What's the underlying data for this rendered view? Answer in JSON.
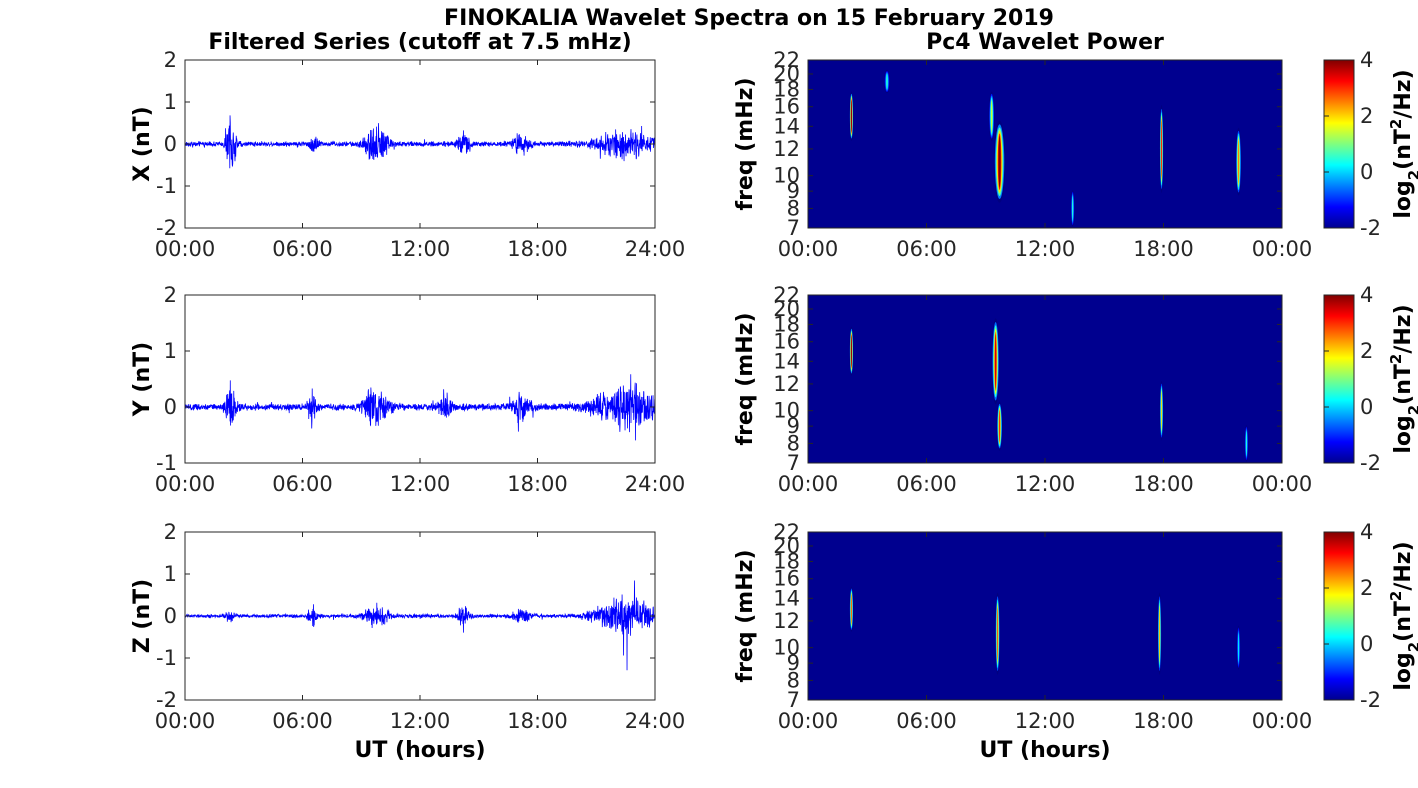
{
  "figure": {
    "title": "FINOKALIA Wavelet Spectra on 15 February 2019",
    "left_title": "Filtered Series (cutoff at 7.5 mHz)",
    "right_title": "Pc4 Wavelet Power",
    "x_label": "UT (hours)"
  },
  "colors": {
    "trace": "#0000ff",
    "axis": "#262626"
  },
  "chart_data": [
    {
      "type": "line",
      "component": "X",
      "ylabel": "X (nT)",
      "ylim": [
        -2,
        2
      ],
      "yticks": [
        "-2",
        "-1",
        "0",
        "1",
        "2"
      ],
      "xticks": [
        "00:00",
        "06:00",
        "12:00",
        "18:00",
        "24:00"
      ],
      "xlim": [
        0,
        24
      ],
      "xlabel": "",
      "noise": 0.07,
      "events": [
        [
          2.35,
          0.75,
          0.25
        ],
        [
          6.6,
          0.3,
          0.2
        ],
        [
          9.8,
          0.55,
          0.6
        ],
        [
          14.2,
          0.3,
          0.3
        ],
        [
          17.2,
          0.3,
          0.4
        ],
        [
          22.5,
          0.35,
          1.5
        ]
      ]
    },
    {
      "type": "line",
      "component": "Y",
      "ylabel": "Y (nT)",
      "ylim": [
        -1,
        2
      ],
      "yticks": [
        "-1",
        "0",
        "1",
        "2"
      ],
      "xticks": [
        "00:00",
        "06:00",
        "12:00",
        "18:00",
        "24:00"
      ],
      "xlim": [
        0,
        24
      ],
      "xlabel": "",
      "noise": 0.07,
      "events": [
        [
          2.35,
          0.5,
          0.25
        ],
        [
          6.5,
          0.35,
          0.2
        ],
        [
          9.8,
          0.4,
          0.6
        ],
        [
          13.3,
          0.3,
          0.3
        ],
        [
          17.2,
          0.3,
          0.4
        ],
        [
          22.5,
          0.45,
          1.5
        ]
      ]
    },
    {
      "type": "line",
      "component": "Z",
      "ylabel": "Z (nT)",
      "ylim": [
        -2,
        2
      ],
      "yticks": [
        "-2",
        "-1",
        "0",
        "1",
        "2"
      ],
      "xticks": [
        "00:00",
        "06:00",
        "12:00",
        "18:00",
        "24:00"
      ],
      "xlim": [
        0,
        24
      ],
      "xlabel": "UT (hours)",
      "noise": 0.05,
      "events": [
        [
          2.3,
          0.15,
          0.2
        ],
        [
          6.5,
          0.3,
          0.2
        ],
        [
          9.8,
          0.3,
          0.6
        ],
        [
          14.2,
          0.25,
          0.3
        ],
        [
          17.2,
          0.2,
          0.4
        ],
        [
          22.5,
          0.5,
          1.5
        ]
      ]
    },
    {
      "type": "heatmap",
      "component": "X",
      "ylabel": "freq (mHz)",
      "yticks": [
        "7",
        "8",
        "9",
        "10",
        "12",
        "14",
        "16",
        "18",
        "20",
        "22"
      ],
      "ylim": [
        7,
        22
      ],
      "xticks": [
        "00:00",
        "06:00",
        "12:00",
        "18:00",
        "00:00"
      ],
      "xlim": [
        0,
        24
      ],
      "xlabel": "",
      "colorbar": {
        "label": "log2(nT2/Hz)",
        "range": [
          -2,
          4
        ],
        "ticks": [
          "-2",
          "0",
          "2",
          "4"
        ]
      },
      "blobs": [
        [
          2.2,
          15,
          0.1,
          5,
          6.2
        ],
        [
          4.0,
          19,
          0.15,
          3,
          2.5
        ],
        [
          9.7,
          11,
          0.3,
          6,
          6.0
        ],
        [
          9.3,
          15,
          0.15,
          5,
          3.5
        ],
        [
          13.4,
          8,
          0.1,
          2,
          2.5
        ],
        [
          17.9,
          12,
          0.1,
          7,
          5.2
        ],
        [
          21.8,
          11,
          0.15,
          5,
          4.5
        ]
      ]
    },
    {
      "type": "heatmap",
      "component": "Y",
      "ylabel": "freq (mHz)",
      "yticks": [
        "7",
        "8",
        "9",
        "10",
        "12",
        "14",
        "16",
        "18",
        "20",
        "22"
      ],
      "ylim": [
        7,
        22
      ],
      "xticks": [
        "00:00",
        "06:00",
        "12:00",
        "18:00",
        "00:00"
      ],
      "xlim": [
        0,
        24
      ],
      "xlabel": "",
      "colorbar": {
        "label": "log2(nT2/Hz)",
        "range": [
          -2,
          4
        ],
        "ticks": [
          "-2",
          "0",
          "2",
          "4"
        ]
      },
      "blobs": [
        [
          2.2,
          15,
          0.1,
          5,
          6.0
        ],
        [
          9.5,
          14,
          0.2,
          8,
          5.5
        ],
        [
          9.7,
          9,
          0.15,
          3,
          5.0
        ],
        [
          17.9,
          10,
          0.1,
          4,
          4.0
        ],
        [
          22.2,
          8,
          0.1,
          2,
          2.5
        ]
      ]
    },
    {
      "type": "heatmap",
      "component": "Z",
      "ylabel": "freq (mHz)",
      "yticks": [
        "7",
        "8",
        "9",
        "10",
        "12",
        "14",
        "16",
        "18",
        "20",
        "22"
      ],
      "ylim": [
        7,
        22
      ],
      "xticks": [
        "00:00",
        "06:00",
        "12:00",
        "18:00",
        "00:00"
      ],
      "xlim": [
        0,
        24
      ],
      "xlabel": "UT (hours)",
      "colorbar": {
        "label": "log2(nT2/Hz)",
        "range": [
          -2,
          4
        ],
        "ticks": [
          "-2",
          "0",
          "2",
          "4"
        ]
      },
      "blobs": [
        [
          2.2,
          13,
          0.1,
          4,
          4.8
        ],
        [
          9.6,
          11,
          0.12,
          6,
          4.8
        ],
        [
          17.8,
          11,
          0.1,
          6,
          4.2
        ],
        [
          21.8,
          10,
          0.1,
          3,
          2.2
        ]
      ]
    }
  ]
}
